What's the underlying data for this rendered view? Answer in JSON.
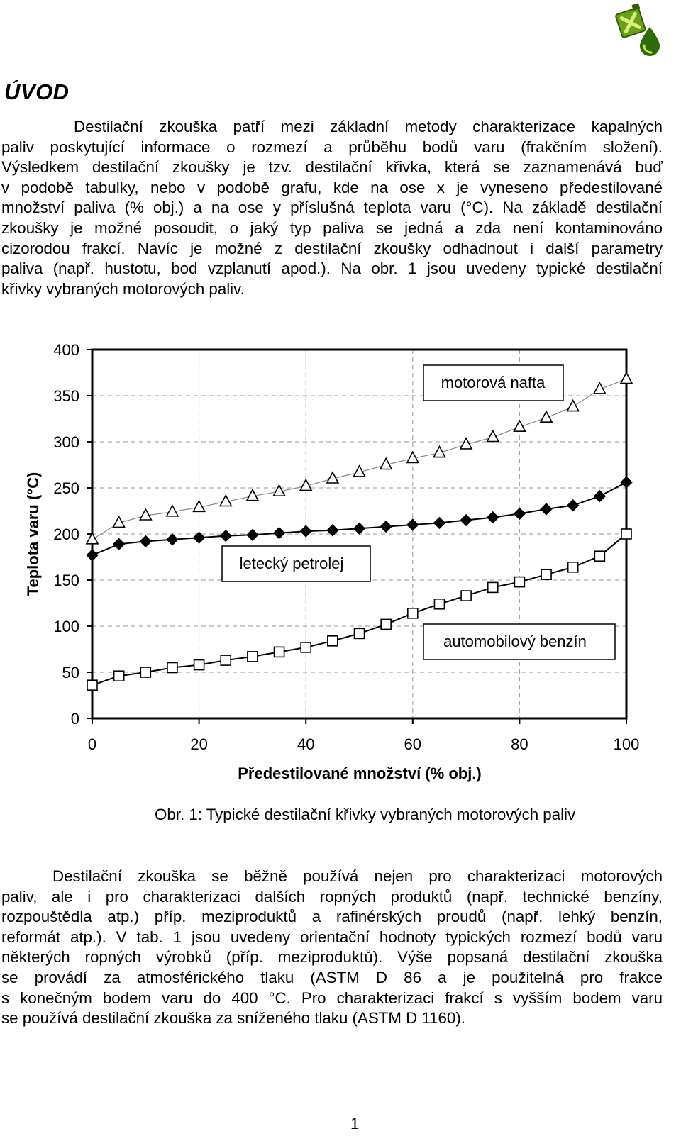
{
  "heading": "ÚVOD",
  "paragraph1": [
    "Destilační zkouška patří mezi základní metody charakterizace kapalných",
    "paliv poskytující informace o rozmezí a průběhu bodů varu (frakčním složení).",
    "Výsledkem destilační zkoušky je tzv. destilační křivka, která se zaznamenává buď",
    "v podobě tabulky, nebo v podobě grafu, kde na ose x je vyneseno předestilované",
    "množství paliva (% obj.) a na ose y příslušná teplota varu (°C). Na základě destilační",
    "zkoušky je možné posoudit, o jaký typ paliva se jedná a zda není kontaminováno",
    "cizorodou frakcí. Navíc je možné z destilační zkoušky odhadnout i další parametry",
    "paliva (např. hustotu, bod vzplanutí apod.). Na obr. 1 jsou uvedeny typické destilační",
    "křivky vybraných motorových paliv."
  ],
  "chart_data": {
    "type": "line",
    "xlabel": "Předestilované množství (% obj.)",
    "ylabel": "Teplota varu (°C)",
    "xlim": [
      0,
      100
    ],
    "ylim": [
      0,
      400
    ],
    "xticks": [
      "0",
      "20",
      "40",
      "60",
      "80",
      "100"
    ],
    "yticks": [
      "0",
      "50",
      "100",
      "150",
      "200",
      "250",
      "300",
      "350",
      "400"
    ],
    "grid": "dashed",
    "x": [
      0,
      5,
      10,
      15,
      20,
      25,
      30,
      35,
      40,
      45,
      50,
      55,
      60,
      65,
      70,
      75,
      80,
      85,
      90,
      95,
      100
    ],
    "series": [
      {
        "name": "motorová nafta",
        "marker": "triangle-open",
        "color": "#888888",
        "values": [
          194,
          212,
          220,
          224,
          229,
          235,
          241,
          246,
          252,
          260,
          267,
          275,
          282,
          288,
          297,
          305,
          316,
          326,
          338,
          357,
          368
        ]
      },
      {
        "name": "letecký petrolej",
        "marker": "diamond-filled",
        "color": "#000000",
        "values": [
          177,
          189,
          192,
          194,
          196,
          198,
          199,
          201,
          203,
          204,
          206,
          208,
          210,
          212,
          215,
          218,
          222,
          227,
          231,
          241,
          256
        ]
      },
      {
        "name": "automobilový benzín",
        "marker": "square-open",
        "color": "#000000",
        "values": [
          36,
          46,
          50,
          55,
          58,
          63,
          67,
          72,
          77,
          84,
          92,
          102,
          114,
          124,
          133,
          142,
          148,
          156,
          164,
          176,
          200
        ]
      }
    ]
  },
  "caption": "Obr. 1: Typické destilační křivky vybraných motorových paliv",
  "paragraph2": [
    "Destilační zkouška se běžně používá nejen pro charakterizaci motorových",
    "paliv, ale i pro charakterizaci dalších ropných produktů (např. technické benzíny,",
    "rozpouštědla atp.) příp. meziproduktů a rafinérských proudů (např. lehký benzín,",
    "reformát atp.). V tab. 1 jsou uvedeny orientační hodnoty typických rozmezí bodů varu",
    "některých ropných výrobků (příp. meziproduktů). Výše popsaná destilační zkouška",
    "se provádí za atmosférického tlaku (ASTM D 86 a je použitelná pro frakce",
    "s konečným bodem varu do 400 °C. Pro charakterizaci frakcí s vyšším bodem varu",
    "se používá destilační zkouška za sníženého tlaku (ASTM D 1160)."
  ],
  "page_number": "1",
  "colors": {
    "logo_green": "#3d7a0f",
    "logo_light": "#a8d51e",
    "grid": "#999999"
  }
}
